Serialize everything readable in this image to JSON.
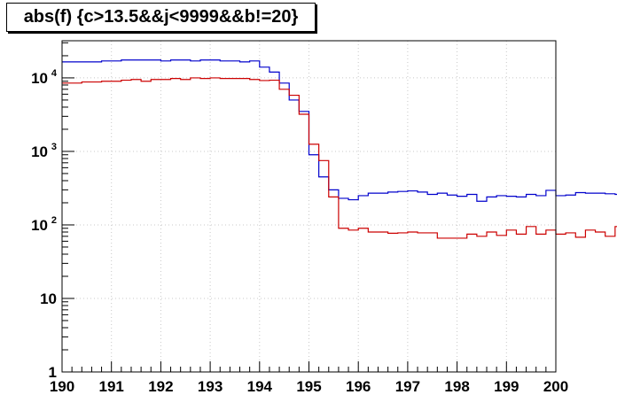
{
  "chart_data": {
    "type": "line",
    "title": "abs(f) {c>13.5&&j<9999&&b!=20}",
    "xlabel": "",
    "ylabel": "",
    "xlim": [
      190,
      200
    ],
    "ylim": [
      1,
      32000
    ],
    "y_scale": "log",
    "grid": true,
    "x_ticks": [
      "190",
      "191",
      "192",
      "193",
      "194",
      "195",
      "196",
      "197",
      "198",
      "199",
      "200"
    ],
    "y_ticks": [
      {
        "base": "1",
        "exp": ""
      },
      {
        "base": "10",
        "exp": ""
      },
      {
        "base": "10",
        "exp": "2"
      },
      {
        "base": "10",
        "exp": "3"
      },
      {
        "base": "10",
        "exp": "4"
      }
    ],
    "bin_edges_start": 190,
    "bin_width": 0.2,
    "series": [
      {
        "color": "#0000cc",
        "values": [
          16500,
          16500,
          16500,
          16500,
          17000,
          17000,
          17500,
          17500,
          17500,
          17500,
          17000,
          17500,
          17500,
          17000,
          17500,
          17500,
          17000,
          17000,
          16500,
          17000,
          14000,
          12000,
          8500,
          5000,
          3500,
          900,
          450,
          300,
          230,
          220,
          250,
          270,
          270,
          280,
          285,
          290,
          280,
          260,
          270,
          255,
          245,
          260,
          210,
          240,
          250,
          245,
          240,
          260,
          250,
          295,
          250,
          255,
          275,
          270,
          270,
          265,
          260,
          245,
          230,
          220
        ]
      },
      {
        "color": "#cc0000",
        "values": [
          8500,
          8500,
          8800,
          8800,
          9000,
          9000,
          9300,
          9500,
          9000,
          9500,
          9500,
          9800,
          9500,
          10000,
          9800,
          10000,
          9800,
          9800,
          9800,
          9500,
          9200,
          9300,
          7000,
          5800,
          3200,
          1250,
          750,
          240,
          90,
          85,
          90,
          80,
          80,
          77,
          78,
          80,
          78,
          78,
          66,
          66,
          66,
          75,
          70,
          80,
          72,
          85,
          75,
          95,
          75,
          85,
          75,
          78,
          68,
          85,
          80,
          70,
          95,
          68,
          85,
          85
        ]
      }
    ]
  }
}
